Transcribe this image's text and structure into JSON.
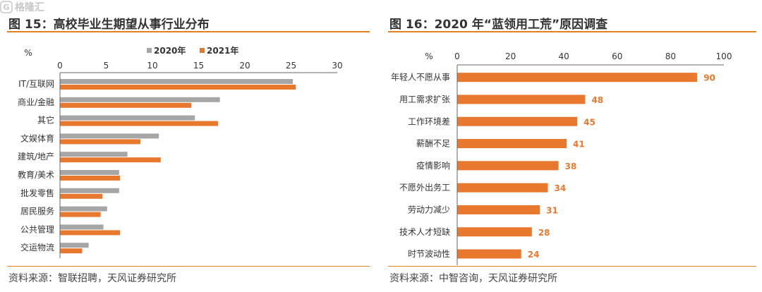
{
  "left": {
    "title": "图 15：高校毕业生期望从事行业分布",
    "source": "资料来源：智联招聘，天风证券研究所"
  },
  "right": {
    "title": "图 16：2020 年“蓝领用工荒”原因调查",
    "source": "资料来源：中智咨询，天风证券研究所"
  },
  "watermark": {
    "text": "格隆汇",
    "mark": "G"
  },
  "colors": {
    "accent": "#e8782d",
    "gray": "#a6a6a6",
    "rule": "#e67e22",
    "value_label": "#e8782d"
  },
  "chart_data": [
    {
      "type": "bar",
      "orientation": "horizontal",
      "unit_label": "%",
      "categories": [
        "IT/互联网",
        "商业/金融",
        "其它",
        "文娱体育",
        "建筑/地产",
        "教育/美术",
        "批发零售",
        "居民服务",
        "公共管理",
        "交运物流"
      ],
      "series": [
        {
          "name": "2020年",
          "color": "#a6a6a6",
          "values": [
            25.2,
            17.3,
            14.6,
            10.7,
            7.3,
            6.4,
            6.4,
            5.1,
            4.7,
            3.1
          ]
        },
        {
          "name": "2021年",
          "color": "#e8782d",
          "values": [
            25.5,
            14.2,
            17.1,
            8.7,
            10.9,
            6.5,
            4.6,
            4.4,
            6.5,
            2.4
          ]
        }
      ],
      "xlim": [
        0,
        30
      ],
      "xticks": [
        0,
        5,
        10,
        15,
        20,
        25,
        30
      ],
      "axis_position": "top",
      "legend": "top-right",
      "grid": false
    },
    {
      "type": "bar",
      "orientation": "horizontal",
      "unit_label": "%",
      "categories": [
        "年轻人不愿从事",
        "用工需求扩张",
        "工作环境差",
        "薪酬不足",
        "疫情影响",
        "不愿外出务工",
        "劳动力减少",
        "技术人才短缺",
        "时节波动性"
      ],
      "values": [
        90,
        48,
        45,
        41,
        38,
        34,
        31,
        28,
        24
      ],
      "color": "#e8782d",
      "xlim": [
        0,
        100
      ],
      "xticks": [
        0,
        20,
        40,
        60,
        80,
        100
      ],
      "axis_position": "top",
      "data_labels": true,
      "grid": false
    }
  ]
}
